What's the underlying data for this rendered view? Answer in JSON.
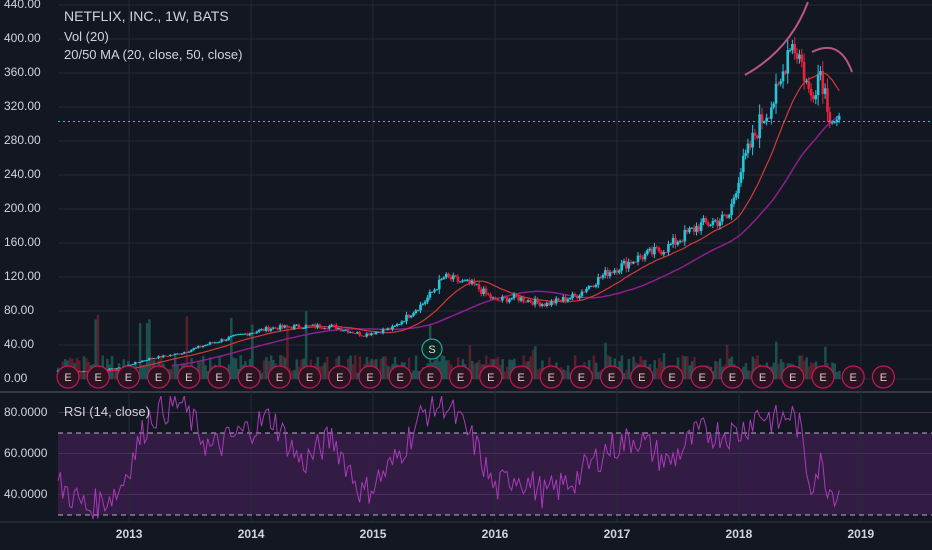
{
  "legend": {
    "title": "NETFLIX, INC., 1W, BATS",
    "vol": "Vol (20)",
    "ma": "20/50 MA (20, close, 50, close)",
    "rsi": "RSI (14, close)"
  },
  "colors": {
    "background": "#131722",
    "up": "#26c6da",
    "down": "#e8233a",
    "ma20": "#d23a3a",
    "ma50": "#8e1e8e",
    "rsi": "#a93ab8",
    "priceline": "#26c6da",
    "annotation": "#b8577f",
    "earnings": "#c2185b"
  },
  "chart_data": [
    {
      "type": "candlestick",
      "title": "NETFLIX, INC., 1W, BATS",
      "x": [
        "2012-06",
        "2012-09",
        "2012-12",
        "2013-03",
        "2013-06",
        "2013-09",
        "2013-12",
        "2014-03",
        "2014-06",
        "2014-09",
        "2014-12",
        "2015-03",
        "2015-06",
        "2015-08",
        "2015-11",
        "2016-01",
        "2016-03",
        "2016-06",
        "2016-09",
        "2016-12",
        "2017-03",
        "2017-06",
        "2017-09",
        "2017-12",
        "2018-01",
        "2018-03",
        "2018-05",
        "2018-06",
        "2018-07",
        "2018-08",
        "2018-09",
        "2018-10",
        "2018-11"
      ],
      "close": [
        10,
        9,
        13,
        24,
        30,
        42,
        52,
        60,
        62,
        62,
        52,
        60,
        90,
        120,
        110,
        92,
        96,
        88,
        98,
        125,
        142,
        155,
        180,
        190,
        240,
        300,
        340,
        400,
        380,
        330,
        365,
        310,
        295
      ],
      "yticks": [
        0,
        40,
        80,
        120,
        160,
        200,
        240,
        280,
        320,
        360,
        400,
        440
      ],
      "ylim": [
        0,
        440
      ],
      "xticks": [
        "2013",
        "2014",
        "2015",
        "2016",
        "2017",
        "2018",
        "2019"
      ],
      "current_price_line": 303,
      "annotations": [
        "S"
      ],
      "earnings_markers": [
        "E",
        "E",
        "E",
        "E",
        "E",
        "E",
        "E",
        "E",
        "E",
        "E",
        "E",
        "E",
        "E",
        "E",
        "E",
        "E",
        "E",
        "E",
        "E",
        "E",
        "E",
        "E",
        "E",
        "E",
        "E",
        "E",
        "E",
        "E"
      ]
    },
    {
      "type": "line",
      "name": "RSI (14, close)",
      "yticks": [
        40,
        60,
        80
      ],
      "bands": [
        30,
        70
      ],
      "x": [
        "2012-06",
        "2012-09",
        "2012-12",
        "2013-03",
        "2013-06",
        "2013-09",
        "2013-12",
        "2014-03",
        "2014-06",
        "2014-09",
        "2014-12",
        "2015-03",
        "2015-06",
        "2015-08",
        "2015-11",
        "2016-01",
        "2016-03",
        "2016-06",
        "2016-09",
        "2016-12",
        "2017-03",
        "2017-06",
        "2017-09",
        "2017-12",
        "2018-01",
        "2018-03",
        "2018-05",
        "2018-06",
        "2018-07",
        "2018-08",
        "2018-09",
        "2018-10",
        "2018-11"
      ],
      "values": [
        45,
        33,
        42,
        78,
        85,
        62,
        70,
        78,
        55,
        68,
        40,
        55,
        80,
        85,
        65,
        42,
        50,
        40,
        48,
        62,
        68,
        55,
        70,
        70,
        70,
        80,
        75,
        80,
        72,
        45,
        55,
        42,
        42
      ]
    }
  ]
}
